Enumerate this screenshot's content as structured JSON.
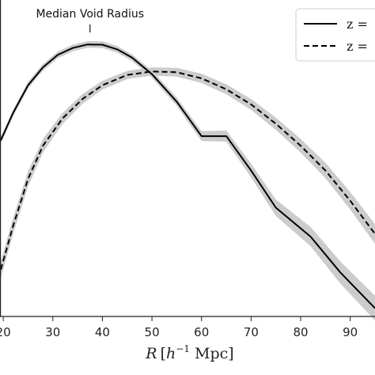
{
  "chart_data": {
    "type": "line",
    "title": "",
    "xlabel": "R [h⁻¹ Mpc]",
    "xlabel_parts": {
      "r": "R",
      "open": "[",
      "h": "h",
      "exp": "−1",
      "unit": " Mpc]"
    },
    "ylabel": "",
    "xlim": [
      19.5,
      95
    ],
    "ylim": [
      0,
      1
    ],
    "x_ticks": [
      20,
      30,
      40,
      50,
      60,
      70,
      80,
      90
    ],
    "x_tick_labels": [
      "20",
      "30",
      "40",
      "50",
      "60",
      "70",
      "80",
      "90"
    ],
    "grid": false,
    "legend_position": "top-right",
    "annotations": [
      {
        "text": "Median Void Radius",
        "x": 37.5
      }
    ],
    "series": [
      {
        "name": "z =",
        "line_style": "solid",
        "color": "#000000",
        "band_color": "#cccccc",
        "x": [
          19.5,
          22,
          25,
          28,
          31,
          34,
          37,
          40,
          43,
          46,
          50,
          55,
          60,
          65,
          70,
          75,
          82,
          88,
          95
        ],
        "y": [
          0.64,
          0.74,
          0.84,
          0.905,
          0.95,
          0.975,
          0.988,
          0.987,
          0.97,
          0.94,
          0.88,
          0.78,
          0.655,
          0.655,
          0.53,
          0.395,
          0.29,
          0.16,
          0.03
        ],
        "band": [
          0.012,
          0.012,
          0.012,
          0.012,
          0.012,
          0.012,
          0.012,
          0.012,
          0.012,
          0.012,
          0.013,
          0.015,
          0.018,
          0.02,
          0.025,
          0.03,
          0.035,
          0.04,
          0.045
        ]
      },
      {
        "name": "z =",
        "line_style": "dashed",
        "color": "#000000",
        "band_color": "#cccccc",
        "x": [
          19.5,
          22,
          25,
          28,
          32,
          36,
          40,
          45,
          50,
          55,
          60,
          65,
          70,
          75,
          80,
          85,
          90,
          95
        ],
        "y": [
          0.17,
          0.33,
          0.5,
          0.62,
          0.72,
          0.79,
          0.84,
          0.877,
          0.89,
          0.887,
          0.865,
          0.825,
          0.77,
          0.7,
          0.62,
          0.53,
          0.42,
          0.3
        ],
        "band": [
          0.03,
          0.03,
          0.028,
          0.025,
          0.02,
          0.018,
          0.016,
          0.015,
          0.015,
          0.016,
          0.017,
          0.018,
          0.02,
          0.022,
          0.025,
          0.028,
          0.032,
          0.036
        ]
      }
    ]
  }
}
